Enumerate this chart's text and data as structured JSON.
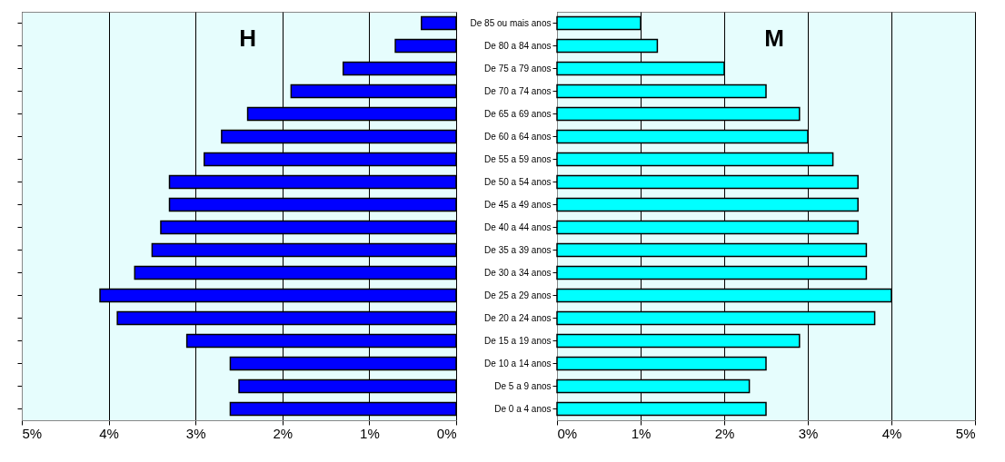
{
  "chart_data": [
    {
      "type": "bar",
      "orientation": "horizontal",
      "title": "H",
      "categories": [
        null,
        null,
        null,
        null,
        null,
        null,
        null,
        null,
        null,
        null,
        null,
        null,
        null,
        null,
        null,
        null,
        null,
        null
      ],
      "series": [
        {
          "color": "#0000ff",
          "values": [
            0.4,
            0.7,
            1.3,
            1.9,
            2.4,
            2.7,
            2.9,
            3.3,
            3.3,
            3.4,
            3.5,
            3.7,
            4.1,
            3.9,
            3.1,
            2.6,
            2.5,
            2.6
          ]
        }
      ],
      "xlim": [
        5,
        0
      ],
      "xticks": [
        {
          "value": 5,
          "label": "5%"
        },
        {
          "value": 4,
          "label": "4%"
        },
        {
          "value": 3,
          "label": "3%"
        },
        {
          "value": 2,
          "label": "2%"
        },
        {
          "value": 1,
          "label": "1%"
        },
        {
          "value": 0,
          "label": "0%"
        }
      ],
      "grid": "x",
      "tick_labels": "x"
    },
    {
      "type": "bar",
      "orientation": "horizontal",
      "title": "M",
      "categories": [
        "De 85 ou mais anos",
        "De 80 a 84 anos",
        "De 75 a 79 anos",
        "De 70 a 74 anos",
        "De 65 a 69 anos",
        "De 60 a 64 anos",
        "De 55 a 59 anos",
        "De 50 a 54 anos",
        "De 45 a 49 anos",
        "De 40 a 44 anos",
        "De 35 a 39 anos",
        "De 30 a 34 anos",
        "De 25 a 29 anos",
        "De 20 a 24 anos",
        "De 15 a 19 anos",
        "De 10 a 14 anos",
        "De 5 a 9 anos",
        "De 0 a 4 anos"
      ],
      "series": [
        {
          "color": "#00ffff",
          "values": [
            1.0,
            1.2,
            2.0,
            2.5,
            2.9,
            3.0,
            3.3,
            3.6,
            3.6,
            3.6,
            3.7,
            3.7,
            4.0,
            3.8,
            2.9,
            2.5,
            2.3,
            2.5
          ]
        }
      ],
      "xlim": [
        0,
        5
      ],
      "xticks": [
        {
          "value": 0,
          "label": "0%"
        },
        {
          "value": 1,
          "label": "1%"
        },
        {
          "value": 2,
          "label": "2%"
        },
        {
          "value": 3,
          "label": "3%"
        },
        {
          "value": 4,
          "label": "4%"
        },
        {
          "value": 5,
          "label": "5%"
        }
      ],
      "grid": "x"
    }
  ]
}
